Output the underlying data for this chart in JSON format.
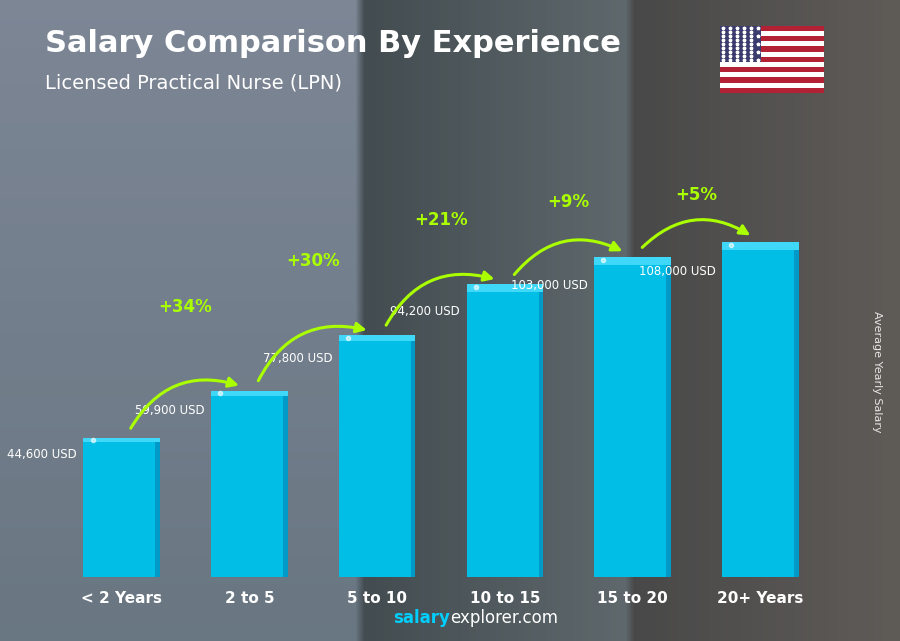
{
  "title": "Salary Comparison By Experience",
  "subtitle": "Licensed Practical Nurse (LPN)",
  "ylabel": "Average Yearly Salary",
  "categories": [
    "< 2 Years",
    "2 to 5",
    "5 to 10",
    "10 to 15",
    "15 to 20",
    "20+ Years"
  ],
  "values": [
    44600,
    59900,
    77800,
    94200,
    103000,
    108000
  ],
  "value_labels": [
    "44,600 USD",
    "59,900 USD",
    "77,800 USD",
    "94,200 USD",
    "103,000 USD",
    "108,000 USD"
  ],
  "pct_labels": [
    "+34%",
    "+30%",
    "+21%",
    "+9%",
    "+5%"
  ],
  "bar_color_main": "#00BEE6",
  "bar_color_light": "#40D8F8",
  "bar_color_dark": "#0090BB",
  "bar_color_right": "#0099C8",
  "pct_color": "#AAFF00",
  "value_color": "#FFFFFF",
  "title_color": "#FFFFFF",
  "subtitle_color": "#FFFFFF",
  "bg_color": "#4a6070",
  "footer_salary_color": "#00CFFF",
  "footer_explorer_color": "#FFFFFF",
  "ylim": [
    0,
    128000
  ],
  "bar_width": 0.6
}
